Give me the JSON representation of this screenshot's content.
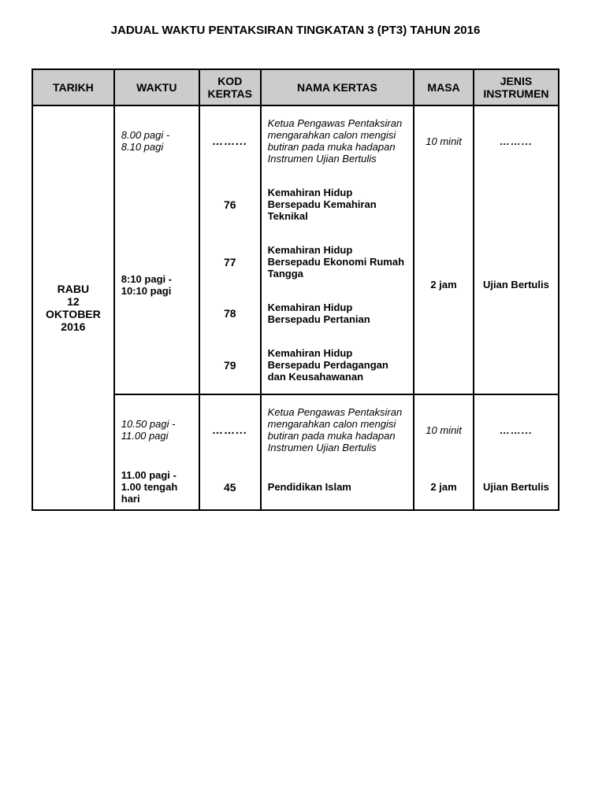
{
  "title": "JADUAL WAKTU PENTAKSIRAN TINGKATAN 3 (PT3) TAHUN 2016",
  "headers": {
    "tarikh": "TARIKH",
    "waktu": "WAKTU",
    "kod": "KOD KERTAS",
    "nama": "NAMA KERTAS",
    "masa": "MASA",
    "jenis": "JENIS INSTRUMEN"
  },
  "date": {
    "day": "RABU",
    "date": "12  OKTOBER",
    "year": "2016"
  },
  "slots": {
    "s1_waktu": "8.00 pagi - 8.10 pagi",
    "s1_kod": "……...",
    "s1_nama": "Ketua Pengawas Pentaksiran mengarahkan calon mengisi butiran pada muka hadapan Instrumen Ujian Bertulis",
    "s1_masa": "10 minit",
    "s1_jenis": "……...",
    "s2_waktu": "8:10 pagi - 10:10 pagi",
    "s2_kod1": "76",
    "s2_nama1": "Kemahiran Hidup Bersepadu Kemahiran Teknikal",
    "s2_kod2": "77",
    "s2_nama2": "Kemahiran Hidup Bersepadu Ekonomi Rumah Tangga",
    "s2_kod3": "78",
    "s2_nama3": "Kemahiran Hidup Bersepadu Pertanian",
    "s2_kod4": "79",
    "s2_nama4": "Kemahiran Hidup Bersepadu Perdagangan dan Keusahawanan",
    "s2_masa": "2 jam",
    "s2_jenis": "Ujian Bertulis",
    "s3_waktu": "10.50 pagi - 11.00 pagi",
    "s3_kod": "……...",
    "s3_nama": "Ketua Pengawas Pentaksiran mengarahkan calon mengisi butiran pada muka hadapan Instrumen Ujian Bertulis",
    "s3_masa": "10 minit",
    "s3_jenis": "……...",
    "s4_waktu": "11.00 pagi - 1.00 tengah hari",
    "s4_kod": "45",
    "s4_nama": "Pendidikan Islam",
    "s4_masa": "2 jam",
    "s4_jenis": "Ujian Bertulis"
  },
  "style": {
    "header_bg": "#cccccc",
    "border_color": "#000000",
    "page_bg": "#ffffff"
  }
}
